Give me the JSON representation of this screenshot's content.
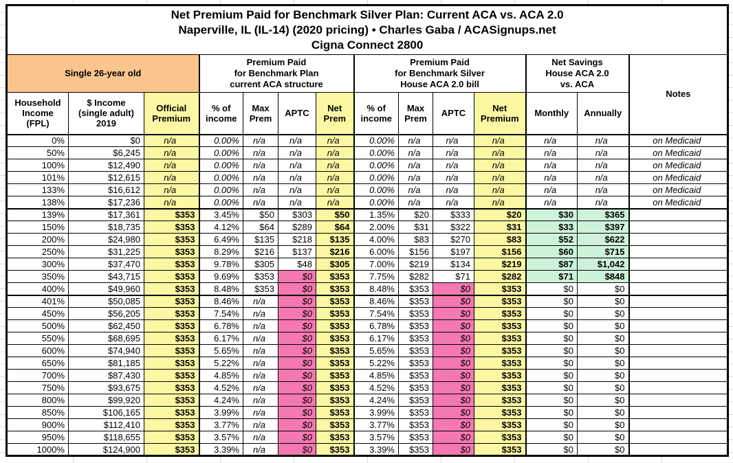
{
  "title": {
    "line1": "Net Premium Paid for Benchmark Silver Plan: Current ACA vs. ACA 2.0",
    "line2": "Naperville, IL (IL-14) (2020 pricing) • Charles Gaba / ACASignups.net",
    "line3": "Cigna Connect 2800"
  },
  "groups": {
    "subject": "Single 26-year old",
    "aca": "Premium Paid\nfor Benchmark Plan\ncurrent ACA structure",
    "aca2": "Premium Paid\nfor Benchmark Silver\nHouse ACA 2.0 bill",
    "savings": "Net Savings\nHouse ACA 2.0\nvs. ACA",
    "notes": "Notes"
  },
  "columns": {
    "fpl": "Household\nIncome\n(FPL)",
    "income": "$ Income\n(single adult)\n2019",
    "official": "Official\nPremium",
    "pct1": "% of\nincome",
    "max1": "Max\nPrem",
    "aptc1": "APTC",
    "net1": "Net\nPrem",
    "pct2": "% of\nincome",
    "max2": "Max\nPrem",
    "aptc2": "APTC",
    "net2": "Net\nPremium",
    "monthly": "Monthly",
    "annually": "Annually"
  },
  "colors": {
    "header_orange": "#FAC48E",
    "highlight_yellow": "#FCF7A3",
    "aptc_pink": "#F478B2",
    "savings_green": "#CDF2D9",
    "border_black": "#000000",
    "grid_gray": "#D9D9D9"
  },
  "chart_data": {
    "type": "table",
    "title": "Net Premium Paid for Benchmark Silver Plan: Current ACA vs. ACA 2.0 — Naperville, IL (IL-14) (2020 pricing) — Cigna Connect 2800",
    "column_groups": [
      "Single 26-year old",
      "Premium Paid for Benchmark Plan current ACA structure",
      "Premium Paid for Benchmark Silver House ACA 2.0 bill",
      "Net Savings House ACA 2.0 vs. ACA",
      "Notes"
    ],
    "columns": [
      "Household Income (FPL)",
      "$ Income (single adult) 2019",
      "Official Premium",
      "ACA % of income",
      "ACA Max Prem",
      "ACA APTC",
      "ACA Net Prem",
      "ACA2.0 % of income",
      "ACA2.0 Max Prem",
      "ACA2.0 APTC",
      "ACA2.0 Net Premium",
      "Savings Monthly",
      "Savings Annually",
      "Notes"
    ],
    "rows": [
      [
        "0%",
        "$0",
        "n/a",
        "0.00%",
        "n/a",
        "n/a",
        "n/a",
        "0.00%",
        "n/a",
        "n/a",
        "n/a",
        "n/a",
        "n/a",
        "on Medicaid"
      ],
      [
        "50%",
        "$6,245",
        "n/a",
        "0.00%",
        "n/a",
        "n/a",
        "n/a",
        "0.00%",
        "n/a",
        "n/a",
        "n/a",
        "n/a",
        "n/a",
        "on Medicaid"
      ],
      [
        "100%",
        "$12,490",
        "n/a",
        "0.00%",
        "n/a",
        "n/a",
        "n/a",
        "0.00%",
        "n/a",
        "n/a",
        "n/a",
        "n/a",
        "n/a",
        "on Medicaid"
      ],
      [
        "101%",
        "$12,615",
        "n/a",
        "0.00%",
        "n/a",
        "n/a",
        "n/a",
        "0.00%",
        "n/a",
        "n/a",
        "n/a",
        "n/a",
        "n/a",
        "on Medicaid"
      ],
      [
        "133%",
        "$16,612",
        "n/a",
        "0.00%",
        "n/a",
        "n/a",
        "n/a",
        "0.00%",
        "n/a",
        "n/a",
        "n/a",
        "n/a",
        "n/a",
        "on Medicaid"
      ],
      [
        "138%",
        "$17,236",
        "n/a",
        "0.00%",
        "n/a",
        "n/a",
        "n/a",
        "0.00%",
        "n/a",
        "n/a",
        "n/a",
        "n/a",
        "n/a",
        "on Medicaid"
      ],
      [
        "139%",
        "$17,361",
        "$353",
        "3.45%",
        "$50",
        "$303",
        "$50",
        "1.35%",
        "$20",
        "$333",
        "$20",
        "$30",
        "$365",
        ""
      ],
      [
        "150%",
        "$18,735",
        "$353",
        "4.12%",
        "$64",
        "$289",
        "$64",
        "2.00%",
        "$31",
        "$322",
        "$31",
        "$33",
        "$397",
        ""
      ],
      [
        "200%",
        "$24,980",
        "$353",
        "6.49%",
        "$135",
        "$218",
        "$135",
        "4.00%",
        "$83",
        "$270",
        "$83",
        "$52",
        "$622",
        ""
      ],
      [
        "250%",
        "$31,225",
        "$353",
        "8.29%",
        "$216",
        "$137",
        "$216",
        "6.00%",
        "$156",
        "$197",
        "$156",
        "$60",
        "$715",
        ""
      ],
      [
        "300%",
        "$37,470",
        "$353",
        "9.78%",
        "$305",
        "$48",
        "$305",
        "7.00%",
        "$219",
        "$134",
        "$219",
        "$87",
        "$1,042",
        ""
      ],
      [
        "350%",
        "$43,715",
        "$353",
        "9.69%",
        "$353",
        "$0",
        "$353",
        "7.75%",
        "$282",
        "$71",
        "$282",
        "$71",
        "$848",
        ""
      ],
      [
        "400%",
        "$49,960",
        "$353",
        "8.48%",
        "$353",
        "$0",
        "$353",
        "8.48%",
        "$353",
        "$0",
        "$353",
        "$0",
        "$0",
        ""
      ],
      [
        "401%",
        "$50,085",
        "$353",
        "8.46%",
        "n/a",
        "$0",
        "$353",
        "8.46%",
        "$353",
        "$0",
        "$353",
        "$0",
        "$0",
        ""
      ],
      [
        "450%",
        "$56,205",
        "$353",
        "7.54%",
        "n/a",
        "$0",
        "$353",
        "7.54%",
        "$353",
        "$0",
        "$353",
        "$0",
        "$0",
        ""
      ],
      [
        "500%",
        "$62,450",
        "$353",
        "6.78%",
        "n/a",
        "$0",
        "$353",
        "6.78%",
        "$353",
        "$0",
        "$353",
        "$0",
        "$0",
        ""
      ],
      [
        "550%",
        "$68,695",
        "$353",
        "6.17%",
        "n/a",
        "$0",
        "$353",
        "6.17%",
        "$353",
        "$0",
        "$353",
        "$0",
        "$0",
        ""
      ],
      [
        "600%",
        "$74,940",
        "$353",
        "5.65%",
        "n/a",
        "$0",
        "$353",
        "5.65%",
        "$353",
        "$0",
        "$353",
        "$0",
        "$0",
        ""
      ],
      [
        "650%",
        "$81,185",
        "$353",
        "5.22%",
        "n/a",
        "$0",
        "$353",
        "5.22%",
        "$353",
        "$0",
        "$353",
        "$0",
        "$0",
        ""
      ],
      [
        "700%",
        "$87,430",
        "$353",
        "4.85%",
        "n/a",
        "$0",
        "$353",
        "4.85%",
        "$353",
        "$0",
        "$353",
        "$0",
        "$0",
        ""
      ],
      [
        "750%",
        "$93,675",
        "$353",
        "4.52%",
        "n/a",
        "$0",
        "$353",
        "4.52%",
        "$353",
        "$0",
        "$353",
        "$0",
        "$0",
        ""
      ],
      [
        "800%",
        "$99,920",
        "$353",
        "4.24%",
        "n/a",
        "$0",
        "$353",
        "4.24%",
        "$353",
        "$0",
        "$353",
        "$0",
        "$0",
        ""
      ],
      [
        "850%",
        "$106,165",
        "$353",
        "3.99%",
        "n/a",
        "$0",
        "$353",
        "3.99%",
        "$353",
        "$0",
        "$353",
        "$0",
        "$0",
        ""
      ],
      [
        "900%",
        "$112,410",
        "$353",
        "3.77%",
        "n/a",
        "$0",
        "$353",
        "3.77%",
        "$353",
        "$0",
        "$353",
        "$0",
        "$0",
        ""
      ],
      [
        "950%",
        "$118,655",
        "$353",
        "3.57%",
        "n/a",
        "$0",
        "$353",
        "3.57%",
        "$353",
        "$0",
        "$353",
        "$0",
        "$0",
        ""
      ],
      [
        "1000%",
        "$124,900",
        "$353",
        "3.39%",
        "n/a",
        "$0",
        "$353",
        "3.39%",
        "$353",
        "$0",
        "$353",
        "$0",
        "$0",
        ""
      ]
    ]
  }
}
